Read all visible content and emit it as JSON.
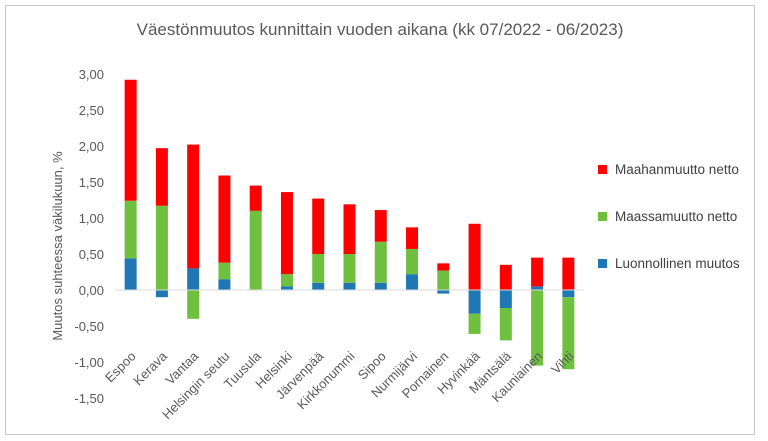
{
  "chart_data": {
    "type": "bar",
    "stacked": true,
    "title": "Väestönmuutos kunnittain vuoden aikana (kk 07/2022 - 06/2023)",
    "xlabel": "",
    "ylabel": "Muutos suhteessa väkilukuun, %",
    "ylim": [
      -1.5,
      3.0
    ],
    "yticks": [
      "3,00",
      "2,50",
      "2,00",
      "1,50",
      "1,00",
      "0,50",
      "0,00",
      "-0,50",
      "-1,00",
      "-1,50"
    ],
    "ytick_values": [
      3.0,
      2.5,
      2.0,
      1.5,
      1.0,
      0.5,
      0.0,
      -0.5,
      -1.0,
      -1.5
    ],
    "categories": [
      "Espoo",
      "Kerava",
      "Vantaa",
      "Helsingin seutu",
      "Tuusula",
      "Helsinki",
      "Järvenpää",
      "Kirkkonummi",
      "Sipoo",
      "Nurmijärvi",
      "Pornainen",
      "Hyvinkää",
      "Mäntsälä",
      "Kauniainen",
      "Vihti"
    ],
    "series": [
      {
        "name": "Luonnollinen muutos",
        "color": "#1f77b4",
        "values": [
          0.44,
          -0.1,
          0.3,
          0.15,
          0.0,
          0.05,
          0.1,
          0.1,
          0.1,
          0.22,
          -0.05,
          -0.33,
          -0.25,
          0.05,
          -0.1
        ]
      },
      {
        "name": "Maassamuutto netto",
        "color": "#70c040",
        "values": [
          0.8,
          1.17,
          -0.4,
          0.23,
          1.1,
          0.17,
          0.4,
          0.4,
          0.57,
          0.35,
          0.27,
          -0.28,
          -0.45,
          -1.05,
          -1.0
        ]
      },
      {
        "name": "Maahanmuutto netto",
        "color": "#ff0000",
        "values": [
          1.68,
          0.8,
          1.72,
          1.21,
          0.35,
          1.14,
          0.77,
          0.69,
          0.44,
          0.3,
          0.1,
          0.92,
          0.35,
          0.4,
          0.45
        ]
      }
    ],
    "legend": [
      {
        "label": "Maahanmuutto netto",
        "color": "#ff0000"
      },
      {
        "label": "Maassamuutto netto",
        "color": "#70c040"
      },
      {
        "label": "Luonnollinen muutos",
        "color": "#1f77b4"
      }
    ],
    "legend_position": "right",
    "grid": false
  }
}
